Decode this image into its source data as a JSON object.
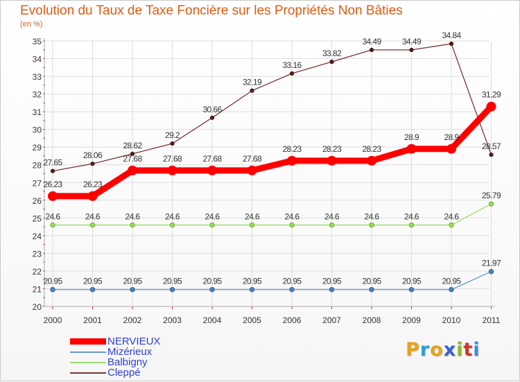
{
  "title": "Evolution du Taux de Taxe Foncière sur les Propriétés Non Bâties",
  "subtitle": "(en %)",
  "logo": {
    "letters": [
      "P",
      "r",
      "o",
      "x",
      "i",
      "t",
      "i"
    ],
    "colors": [
      "#e8a21a",
      "#2a9fd8",
      "#e8a21a",
      "#3a62c8",
      "#8fb82a",
      "#d0342c",
      "#3a8fd8"
    ]
  },
  "chart_data": {
    "type": "line",
    "x": [
      "2000",
      "2001",
      "2002",
      "2003",
      "2004",
      "2005",
      "2006",
      "2007",
      "2008",
      "2009",
      "2010",
      "2011"
    ],
    "ylim": [
      20,
      35
    ],
    "yticks": [
      "20",
      "21",
      "22",
      "23",
      "24",
      "25",
      "26",
      "27",
      "28",
      "29",
      "30",
      "31",
      "32",
      "33",
      "34",
      "35"
    ],
    "grid": true,
    "legend_position": "bottom-left",
    "series": [
      {
        "name": "NERVIEUX",
        "color": "#ff0000",
        "values": [
          26.23,
          26.23,
          27.68,
          27.68,
          27.68,
          27.68,
          28.23,
          28.23,
          28.23,
          28.9,
          28.9,
          31.29
        ],
        "labels": [
          "26.23",
          "26.23",
          "27.68",
          "27.68",
          "27.68",
          "27.68",
          "28.23",
          "28.23",
          "28.23",
          "28.9",
          "28.9",
          "31.29"
        ]
      },
      {
        "name": "Mizérieux",
        "color": "#6699cc",
        "values": [
          20.95,
          20.95,
          20.95,
          20.95,
          20.95,
          20.95,
          20.95,
          20.95,
          20.95,
          20.95,
          20.95,
          21.97
        ],
        "labels": [
          "20.95",
          "20.95",
          "20.95",
          "20.95",
          "20.95",
          "20.95",
          "20.95",
          "20.95",
          "20.95",
          "20.95",
          "20.95",
          "21.97"
        ]
      },
      {
        "name": "Balbigny",
        "color": "#99dd66",
        "values": [
          24.6,
          24.6,
          24.6,
          24.6,
          24.6,
          24.6,
          24.6,
          24.6,
          24.6,
          24.6,
          24.6,
          25.79
        ],
        "labels": [
          "24.6",
          "24.6",
          "24.6",
          "24.6",
          "24.6",
          "24.6",
          "24.6",
          "24.6",
          "24.6",
          "24.6",
          "24.6",
          "25.79"
        ]
      },
      {
        "name": "Cleppé",
        "color": "#7a3535",
        "values": [
          27.65,
          28.06,
          28.62,
          29.2,
          30.66,
          32.19,
          33.16,
          33.82,
          34.49,
          34.49,
          34.84,
          28.57
        ],
        "labels": [
          "27.65",
          "28.06",
          "28.62",
          "29.2",
          "30.66",
          "32.19",
          "33.16",
          "33.82",
          "34.49",
          "34.49",
          "34.84",
          "28.57"
        ]
      }
    ]
  }
}
